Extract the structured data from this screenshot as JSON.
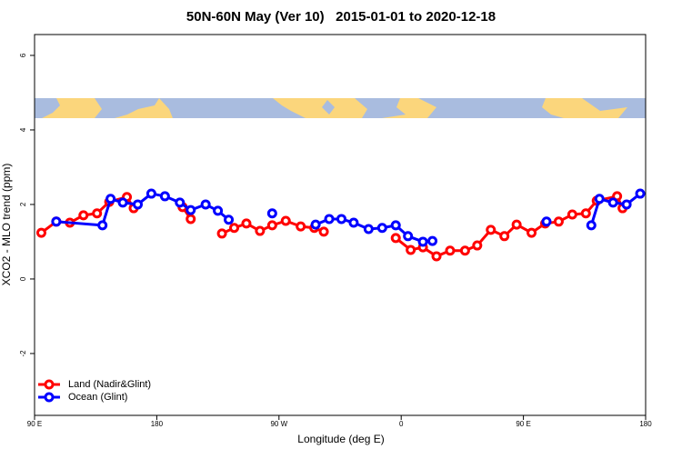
{
  "chart_data": {
    "type": "line",
    "title": "50N-60N May (Ver 10)   2015-01-01 to 2020-12-18",
    "xlabel": "Longitude (deg E)",
    "ylabel": "XCO2 - MLO trend (ppm)",
    "xlim": [
      90,
      540
    ],
    "xticks": [
      {
        "value": 90,
        "label": "90 E"
      },
      180,
      {
        "value": 270,
        "label": "90 W"
      },
      {
        "value": 360,
        "label": "0"
      },
      {
        "value": 450,
        "label": "90 E"
      },
      {
        "value": 540,
        "label": "180"
      }
    ],
    "ylim": [
      -3.66,
      6.56
    ],
    "yticks": [
      -2,
      0,
      2,
      4,
      6
    ],
    "legend": "bottom-left",
    "series": [
      {
        "name": "Land (Nadir&Glint)",
        "color": "#ff0000",
        "x": [
          95,
          106,
          116,
          126,
          136,
          145,
          158,
          163,
          null,
          199,
          205,
          null,
          228,
          237,
          246,
          256,
          265,
          275,
          286,
          296,
          303,
          null,
          356,
          367,
          376,
          386,
          396,
          407,
          416,
          426,
          436,
          445,
          456,
          466,
          476,
          486,
          496,
          504,
          519,
          523
        ],
        "values": [
          1.24,
          1.54,
          1.51,
          1.71,
          1.76,
          2.07,
          2.2,
          1.9,
          null,
          1.93,
          1.61,
          null,
          1.22,
          1.37,
          1.49,
          1.29,
          1.44,
          1.56,
          1.41,
          1.37,
          1.27,
          null,
          1.1,
          0.78,
          0.85,
          0.61,
          0.76,
          0.76,
          0.9,
          1.32,
          1.15,
          1.46,
          1.24,
          1.49,
          1.54,
          1.73,
          1.76,
          2.1,
          2.22,
          1.9
        ]
      },
      {
        "name": "Ocean (Glint)",
        "color": "#0000ff",
        "x": [
          106,
          140,
          146,
          155,
          166,
          176,
          186,
          197,
          205,
          216,
          225,
          233,
          null,
          265,
          null,
          297,
          307,
          316,
          325,
          336,
          346,
          356,
          365,
          376,
          383,
          null,
          467,
          null,
          500,
          506,
          516,
          526,
          536
        ],
        "values": [
          1.54,
          1.44,
          2.15,
          2.05,
          2.0,
          2.29,
          2.22,
          2.05,
          1.85,
          2.0,
          1.83,
          1.59,
          null,
          1.76,
          null,
          1.46,
          1.61,
          1.61,
          1.51,
          1.34,
          1.37,
          1.44,
          1.15,
          1.0,
          1.02,
          null,
          1.54,
          null,
          1.44,
          2.15,
          2.05,
          2.0,
          2.29
        ]
      }
    ]
  }
}
